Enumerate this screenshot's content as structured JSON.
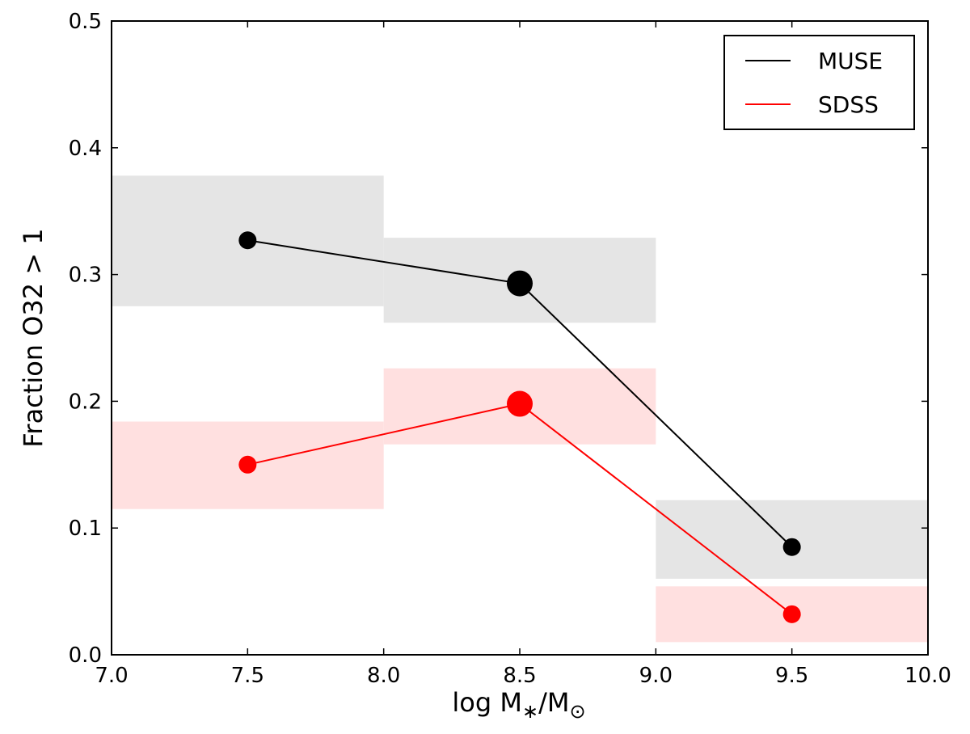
{
  "chart_data": {
    "type": "line",
    "title": "",
    "xlabel": "log M ∗/M☉",
    "xlabel_parts": {
      "prefix": "log M",
      "sub1": "∗",
      "slash": "/M",
      "sub2": "⊙"
    },
    "ylabel": "Fraction O32 > 1",
    "xlim": [
      7.0,
      10.0
    ],
    "ylim": [
      0.0,
      0.5
    ],
    "xticks": [
      "7.0",
      "7.5",
      "8.0",
      "8.5",
      "9.0",
      "9.5",
      "10.0"
    ],
    "yticks": [
      "0.0",
      "0.1",
      "0.2",
      "0.3",
      "0.4",
      "0.5"
    ],
    "grid": false,
    "legend_position": "top-right",
    "series": [
      {
        "name": "MUSE",
        "color": "#000000",
        "band_color": "#e5e5e5",
        "x": [
          7.5,
          8.5,
          9.5
        ],
        "y": [
          0.327,
          0.293,
          0.085
        ],
        "bins": [
          [
            7.0,
            8.0
          ],
          [
            8.0,
            9.0
          ],
          [
            9.0,
            10.0
          ]
        ],
        "y_low": [
          0.275,
          0.262,
          0.06
        ],
        "y_high": [
          0.378,
          0.329,
          0.122
        ],
        "marker_size": [
          "medium",
          "large",
          "medium"
        ]
      },
      {
        "name": "SDSS",
        "color": "#ff0000",
        "band_color": "#ffe0e0",
        "x": [
          7.5,
          8.5,
          9.5
        ],
        "y": [
          0.15,
          0.198,
          0.032
        ],
        "bins": [
          [
            7.0,
            8.0
          ],
          [
            8.0,
            9.0
          ],
          [
            9.0,
            10.0
          ]
        ],
        "y_low": [
          0.115,
          0.166,
          0.01
        ],
        "y_high": [
          0.184,
          0.226,
          0.054
        ],
        "marker_size": [
          "medium",
          "large",
          "medium"
        ]
      }
    ]
  }
}
